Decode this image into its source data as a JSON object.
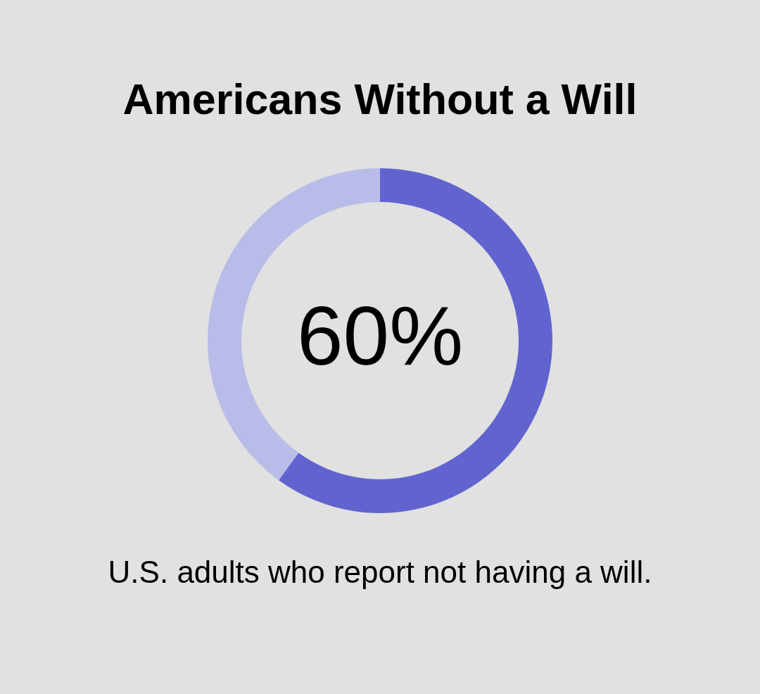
{
  "chart_data": {
    "type": "donut",
    "title": "Americans Without a Will",
    "categories": [
      null,
      null
    ],
    "values": [
      60,
      40
    ],
    "colors": [
      "#6164cf",
      "#b9bce9"
    ],
    "annotations": [
      "60%",
      "U.S. adults who report not having a will."
    ]
  }
}
